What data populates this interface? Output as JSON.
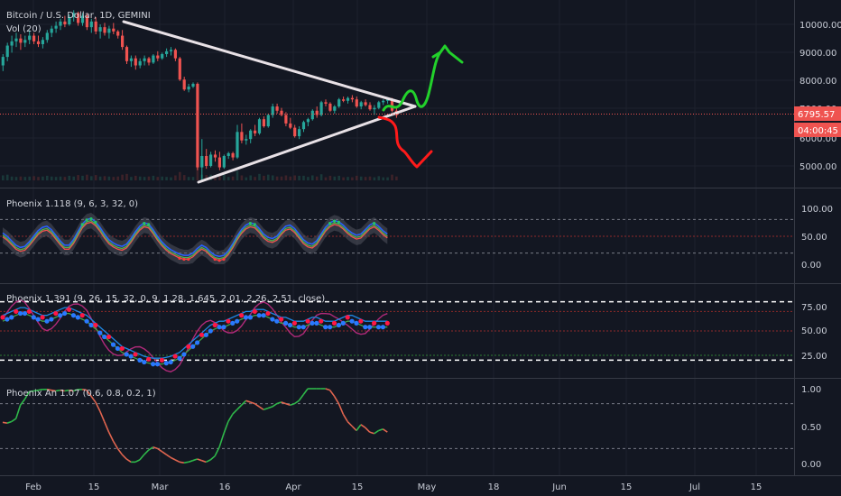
{
  "chart_data": {
    "type": "candlestick",
    "symbol_title": "Bitcoin / U.S. Dollar, 1D, GEMINI",
    "volume_label": "Vol (20)",
    "x_ticks": [
      "Feb",
      "15",
      "Mar",
      "16",
      "Apr",
      "15",
      "May",
      "18",
      "Jun",
      "15",
      "Jul",
      "15"
    ],
    "price_ticks": [
      "10000.00",
      "9000.00",
      "8000.00",
      "7000.00",
      "6000.00",
      "5000.00"
    ],
    "last_price": "6795.57",
    "countdown": "04:00:45",
    "colors": {
      "up": "#26a69a",
      "down": "#ef5350",
      "background": "#131722",
      "trendline": "#e8e1e6",
      "bull_arrow": "#22d12b",
      "bear_arrow": "#ff1a1a"
    },
    "price": [
      {
        "o": 8550,
        "h": 8950,
        "l": 8350,
        "c": 8850
      },
      {
        "o": 8850,
        "h": 9350,
        "l": 8700,
        "c": 9250
      },
      {
        "o": 9250,
        "h": 9600,
        "l": 9000,
        "c": 9400
      },
      {
        "o": 9400,
        "h": 9700,
        "l": 9200,
        "c": 9500
      },
      {
        "o": 9500,
        "h": 9650,
        "l": 9100,
        "c": 9350
      },
      {
        "o": 9350,
        "h": 9600,
        "l": 9200,
        "c": 9450
      },
      {
        "o": 9450,
        "h": 9800,
        "l": 9300,
        "c": 9600
      },
      {
        "o": 9600,
        "h": 9700,
        "l": 9300,
        "c": 9400
      },
      {
        "o": 9400,
        "h": 9600,
        "l": 9200,
        "c": 9300
      },
      {
        "o": 9300,
        "h": 9550,
        "l": 9150,
        "c": 9450
      },
      {
        "o": 9450,
        "h": 9800,
        "l": 9350,
        "c": 9700
      },
      {
        "o": 9700,
        "h": 9950,
        "l": 9550,
        "c": 9850
      },
      {
        "o": 9850,
        "h": 10100,
        "l": 9700,
        "c": 9950
      },
      {
        "o": 9950,
        "h": 10200,
        "l": 9800,
        "c": 10100
      },
      {
        "o": 10100,
        "h": 10300,
        "l": 9900,
        "c": 10000
      },
      {
        "o": 10000,
        "h": 10350,
        "l": 9950,
        "c": 10250
      },
      {
        "o": 10250,
        "h": 10500,
        "l": 10100,
        "c": 10400
      },
      {
        "o": 10400,
        "h": 10450,
        "l": 9950,
        "c": 10050
      },
      {
        "o": 10050,
        "h": 10400,
        "l": 9950,
        "c": 10300
      },
      {
        "o": 10300,
        "h": 10400,
        "l": 9800,
        "c": 9900
      },
      {
        "o": 9900,
        "h": 10200,
        "l": 9700,
        "c": 10100
      },
      {
        "o": 10100,
        "h": 10250,
        "l": 9650,
        "c": 9750
      },
      {
        "o": 9750,
        "h": 10000,
        "l": 9500,
        "c": 9900
      },
      {
        "o": 9900,
        "h": 10050,
        "l": 9600,
        "c": 9700
      },
      {
        "o": 9700,
        "h": 9950,
        "l": 9500,
        "c": 9850
      },
      {
        "o": 9850,
        "h": 10050,
        "l": 9650,
        "c": 9750
      },
      {
        "o": 9750,
        "h": 9800,
        "l": 9500,
        "c": 9600
      },
      {
        "o": 9600,
        "h": 9800,
        "l": 9100,
        "c": 9200
      },
      {
        "o": 9200,
        "h": 9250,
        "l": 8600,
        "c": 8700
      },
      {
        "o": 8700,
        "h": 8900,
        "l": 8500,
        "c": 8800
      },
      {
        "o": 8800,
        "h": 8900,
        "l": 8400,
        "c": 8550
      },
      {
        "o": 8550,
        "h": 8800,
        "l": 8450,
        "c": 8700
      },
      {
        "o": 8700,
        "h": 8900,
        "l": 8550,
        "c": 8800
      },
      {
        "o": 8800,
        "h": 8850,
        "l": 8550,
        "c": 8650
      },
      {
        "o": 8650,
        "h": 8950,
        "l": 8600,
        "c": 8900
      },
      {
        "o": 8900,
        "h": 9050,
        "l": 8700,
        "c": 8800
      },
      {
        "o": 8800,
        "h": 9000,
        "l": 8750,
        "c": 8950
      },
      {
        "o": 8950,
        "h": 9150,
        "l": 8850,
        "c": 9050
      },
      {
        "o": 9050,
        "h": 9200,
        "l": 8900,
        "c": 9100
      },
      {
        "o": 9100,
        "h": 9150,
        "l": 8700,
        "c": 8800
      },
      {
        "o": 8800,
        "h": 8850,
        "l": 8000,
        "c": 8050
      },
      {
        "o": 8050,
        "h": 8150,
        "l": 7650,
        "c": 7700
      },
      {
        "o": 7700,
        "h": 7900,
        "l": 7600,
        "c": 7800
      },
      {
        "o": 7800,
        "h": 7950,
        "l": 7750,
        "c": 7900
      },
      {
        "o": 7900,
        "h": 7950,
        "l": 4850,
        "c": 4950
      },
      {
        "o": 4950,
        "h": 5950,
        "l": 4450,
        "c": 5350
      },
      {
        "o": 5350,
        "h": 5600,
        "l": 4900,
        "c": 5000
      },
      {
        "o": 5000,
        "h": 5500,
        "l": 4950,
        "c": 5400
      },
      {
        "o": 5400,
        "h": 5550,
        "l": 5150,
        "c": 5300
      },
      {
        "o": 5300,
        "h": 5500,
        "l": 4850,
        "c": 4950
      },
      {
        "o": 4950,
        "h": 5400,
        "l": 4900,
        "c": 5350
      },
      {
        "o": 5350,
        "h": 5500,
        "l": 5250,
        "c": 5450
      },
      {
        "o": 5450,
        "h": 5500,
        "l": 5200,
        "c": 5300
      },
      {
        "o": 5300,
        "h": 6450,
        "l": 5250,
        "c": 6200
      },
      {
        "o": 6200,
        "h": 6500,
        "l": 5800,
        "c": 5900
      },
      {
        "o": 5900,
        "h": 6100,
        "l": 5750,
        "c": 5950
      },
      {
        "o": 5950,
        "h": 6300,
        "l": 5800,
        "c": 6250
      },
      {
        "o": 6250,
        "h": 6450,
        "l": 6050,
        "c": 6150
      },
      {
        "o": 6150,
        "h": 6700,
        "l": 6100,
        "c": 6650
      },
      {
        "o": 6650,
        "h": 6750,
        "l": 6350,
        "c": 6400
      },
      {
        "o": 6400,
        "h": 6850,
        "l": 6350,
        "c": 6800
      },
      {
        "o": 6800,
        "h": 7200,
        "l": 6700,
        "c": 7100
      },
      {
        "o": 7100,
        "h": 7200,
        "l": 6850,
        "c": 6950
      },
      {
        "o": 6950,
        "h": 7050,
        "l": 6750,
        "c": 6800
      },
      {
        "o": 6800,
        "h": 6900,
        "l": 6400,
        "c": 6500
      },
      {
        "o": 6500,
        "h": 6700,
        "l": 6300,
        "c": 6350
      },
      {
        "o": 6350,
        "h": 6450,
        "l": 6000,
        "c": 6050
      },
      {
        "o": 6050,
        "h": 6400,
        "l": 5950,
        "c": 6300
      },
      {
        "o": 6300,
        "h": 6600,
        "l": 6200,
        "c": 6550
      },
      {
        "o": 6550,
        "h": 6700,
        "l": 6400,
        "c": 6650
      },
      {
        "o": 6650,
        "h": 7000,
        "l": 6600,
        "c": 6950
      },
      {
        "o": 6950,
        "h": 7100,
        "l": 6700,
        "c": 6800
      },
      {
        "o": 6800,
        "h": 7300,
        "l": 6750,
        "c": 7250
      },
      {
        "o": 7250,
        "h": 7350,
        "l": 7100,
        "c": 7200
      },
      {
        "o": 7200,
        "h": 7250,
        "l": 6900,
        "c": 6950
      },
      {
        "o": 6950,
        "h": 7150,
        "l": 6850,
        "c": 7100
      },
      {
        "o": 7100,
        "h": 7400,
        "l": 7050,
        "c": 7350
      },
      {
        "o": 7350,
        "h": 7450,
        "l": 7250,
        "c": 7300
      },
      {
        "o": 7300,
        "h": 7450,
        "l": 7200,
        "c": 7400
      },
      {
        "o": 7400,
        "h": 7500,
        "l": 7250,
        "c": 7350
      },
      {
        "o": 7350,
        "h": 7450,
        "l": 7050,
        "c": 7100
      },
      {
        "o": 7100,
        "h": 7300,
        "l": 7000,
        "c": 7250
      },
      {
        "o": 7250,
        "h": 7350,
        "l": 7100,
        "c": 7150
      },
      {
        "o": 7150,
        "h": 7250,
        "l": 6950,
        "c": 7000
      },
      {
        "o": 7000,
        "h": 7150,
        "l": 6800,
        "c": 7050
      },
      {
        "o": 7050,
        "h": 7300,
        "l": 7000,
        "c": 7250
      },
      {
        "o": 7250,
        "h": 7350,
        "l": 7150,
        "c": 7300
      },
      {
        "o": 7300,
        "h": 7400,
        "l": 7200,
        "c": 7350
      },
      {
        "o": 7350,
        "h": 7400,
        "l": 6900,
        "c": 6950
      },
      {
        "o": 6950,
        "h": 7050,
        "l": 6700,
        "c": 6796
      }
    ],
    "panels": [
      {
        "title": "Phoenix 1.118 (9, 6, 3, 32, 0)",
        "ticks": [
          "100.00",
          "50.00",
          "0.00"
        ],
        "levels": [
          20,
          50,
          80
        ]
      },
      {
        "title": "Phoenix 1.391 (9, 26, 15, 32, 0, 9, 1.28, 1.645, 2.01, 2.26, 2.51, close)",
        "ticks": [
          "75.00",
          "50.00",
          "25.00"
        ],
        "levels": [
          20,
          25,
          50,
          70,
          80
        ]
      },
      {
        "title": "Phoenix An 1.07 (0.6, 0.8, 0.2, 1)",
        "ticks": [
          "1.00",
          "0.50",
          "0.00"
        ],
        "levels": [
          0.2,
          0.8
        ]
      }
    ],
    "osc1": [
      52,
      46,
      38,
      30,
      26,
      28,
      36,
      46,
      56,
      62,
      64,
      58,
      48,
      38,
      30,
      30,
      40,
      54,
      68,
      76,
      78,
      72,
      62,
      50,
      40,
      34,
      30,
      28,
      32,
      42,
      54,
      64,
      70,
      68,
      58,
      46,
      36,
      28,
      22,
      18,
      14,
      12,
      12,
      16,
      24,
      30,
      26,
      18,
      12,
      10,
      12,
      20,
      32,
      46,
      58,
      66,
      70,
      68,
      60,
      50,
      44,
      42,
      46,
      56,
      64,
      66,
      60,
      50,
      40,
      34,
      32,
      38,
      50,
      62,
      70,
      74,
      72,
      66,
      58,
      52,
      48,
      50,
      58,
      66,
      70,
      64,
      56,
      50
    ],
    "osc2": [
      62,
      64,
      66,
      68,
      70,
      70,
      68,
      66,
      64,
      62,
      62,
      64,
      66,
      68,
      70,
      70,
      68,
      66,
      64,
      62,
      58,
      54,
      50,
      46,
      42,
      38,
      34,
      30,
      28,
      26,
      24,
      22,
      20,
      19,
      18,
      18,
      18,
      19,
      20,
      22,
      24,
      28,
      32,
      36,
      40,
      44,
      48,
      52,
      54,
      56,
      56,
      58,
      60,
      62,
      64,
      66,
      66,
      68,
      68,
      68,
      66,
      64,
      62,
      60,
      60,
      58,
      56,
      56,
      56,
      58,
      60,
      60,
      58,
      56,
      56,
      56,
      58,
      60,
      62,
      62,
      60,
      58,
      56,
      56,
      56,
      56,
      56,
      56
    ],
    "osc3": [
      0.55,
      0.54,
      0.56,
      0.6,
      0.78,
      0.86,
      0.96,
      0.97,
      0.98,
      0.99,
      0.99,
      0.98,
      0.97,
      0.98,
      0.97,
      0.98,
      0.97,
      0.99,
      0.99,
      0.98,
      0.9,
      0.82,
      0.7,
      0.56,
      0.42,
      0.3,
      0.2,
      0.12,
      0.06,
      0.02,
      0.02,
      0.05,
      0.12,
      0.18,
      0.22,
      0.2,
      0.16,
      0.12,
      0.08,
      0.05,
      0.02,
      0.01,
      0.02,
      0.04,
      0.06,
      0.04,
      0.02,
      0.05,
      0.1,
      0.22,
      0.4,
      0.56,
      0.66,
      0.72,
      0.78,
      0.84,
      0.82,
      0.8,
      0.76,
      0.72,
      0.74,
      0.76,
      0.8,
      0.82,
      0.8,
      0.78,
      0.8,
      0.84,
      0.92,
      1.0,
      1.0,
      1.0,
      1.0,
      1.0,
      0.98,
      0.9,
      0.8,
      0.66,
      0.56,
      0.5,
      0.44,
      0.52,
      0.48,
      0.42,
      0.4,
      0.44,
      0.46,
      0.42
    ]
  }
}
